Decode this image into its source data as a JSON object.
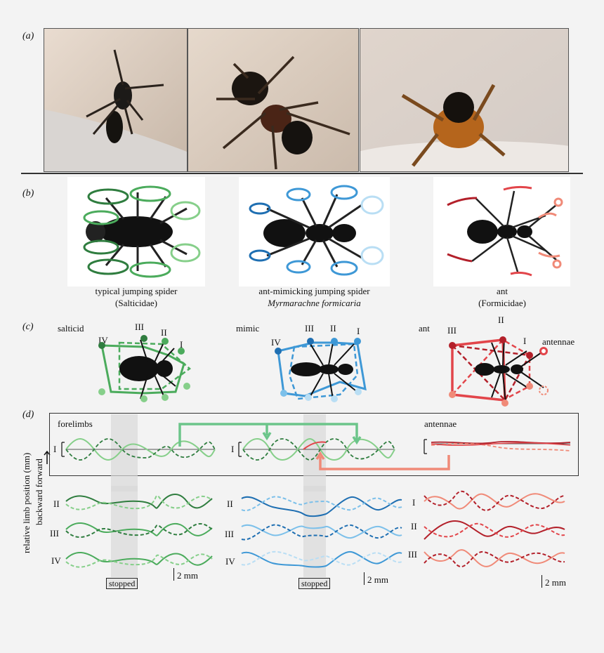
{
  "panels": {
    "a": "(a)",
    "b": "(b)",
    "c": "(c)",
    "d": "(d)"
  },
  "captions_b": [
    {
      "line1": "typical jumping spider",
      "line2": "(Salticidae)"
    },
    {
      "line1": "ant-mimicking jumping spider",
      "line2": "Myrmarachne formicaria"
    },
    {
      "line1": "ant",
      "line2": "(Formicidae)"
    }
  ],
  "panel_c": {
    "groups": [
      {
        "name": "salticid",
        "limbs": [
          "IV",
          "III",
          "II",
          "I"
        ]
      },
      {
        "name": "mimic",
        "limbs": [
          "IV",
          "III",
          "II",
          "I"
        ]
      },
      {
        "name": "ant",
        "limbs": [
          "III",
          "II",
          "I"
        ],
        "extra": "antennae"
      }
    ]
  },
  "panel_d": {
    "forelimbs_label": "forelimbs",
    "antennae_label": "antennae",
    "ylabel_line1": "relative limb position (mm)",
    "ylabel_line2": "backward forward",
    "limbs_top": "I",
    "rows_left": [
      "II",
      "III",
      "IV"
    ],
    "rows_mid": [
      "II",
      "III",
      "IV"
    ],
    "rows_right": [
      "I",
      "II",
      "III"
    ],
    "stopped": "stopped",
    "scale": "2 mm"
  },
  "colors": {
    "salticid": [
      "#2f7d3f",
      "#4bab5c",
      "#86cf8a",
      "#b6e39c"
    ],
    "mimic": [
      "#1f6fb2",
      "#3e98d6",
      "#7cc0ea",
      "#b9def4"
    ],
    "ant": [
      "#b3202a",
      "#e2454a",
      "#f08a78"
    ]
  }
}
